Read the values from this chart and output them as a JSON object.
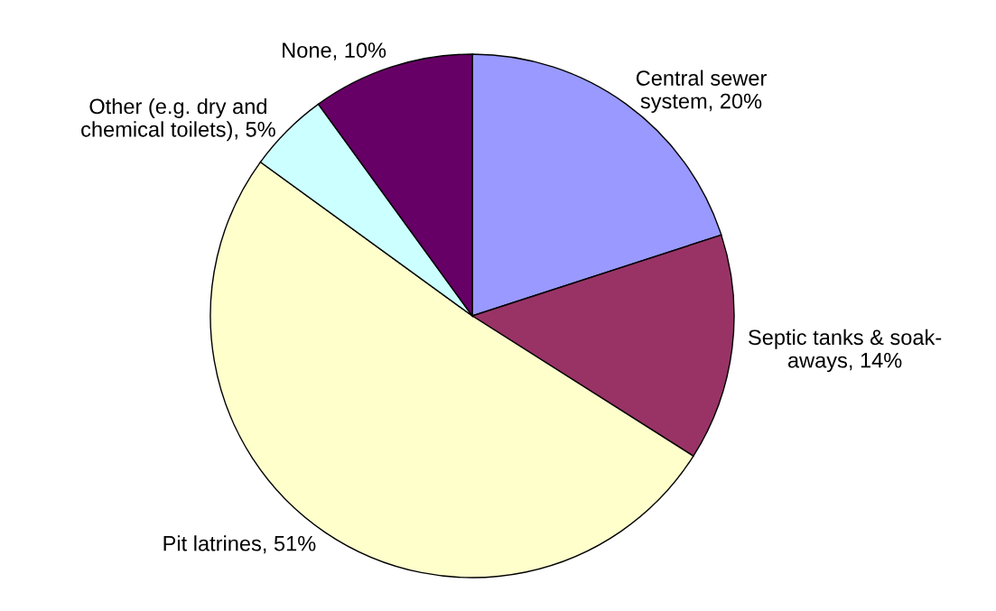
{
  "chart_data": {
    "type": "pie",
    "categories": [
      "Central sewer\nsystem, 20%",
      "Septic tanks & soak-\naways, 14%",
      "Pit latrines, 51%",
      "Other (e.g. dry and\nchemical toilets), 5%",
      "None, 10%"
    ],
    "values": [
      20,
      14,
      51,
      5,
      10
    ],
    "colors": [
      "#9999ff",
      "#993366",
      "#ffffcc",
      "#ccffff",
      "#660066"
    ]
  }
}
